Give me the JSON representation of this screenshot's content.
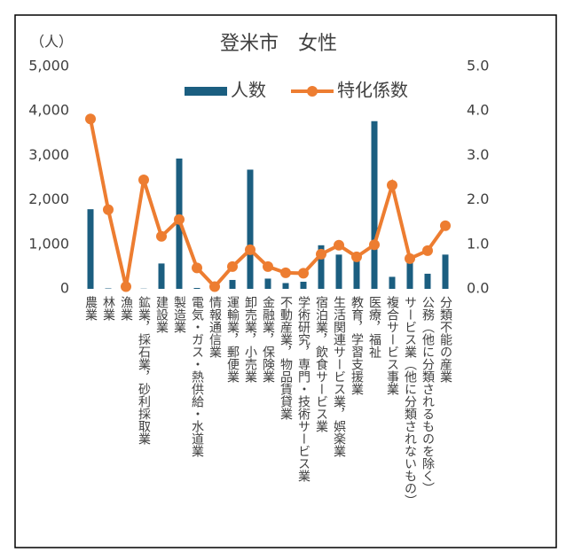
{
  "chart_data": {
    "type": "bar_line",
    "title": "登米市　女性",
    "y_label": "（人）",
    "categories": [
      "農業",
      "林業",
      "漁業",
      "鉱業，採石業，砂利採取業",
      "建設業",
      "製造業",
      "電気・ガス・熱供給・水道業",
      "情報通信業",
      "運輸業，郵便業",
      "卸売業，小売業",
      "金融業，保険業",
      "不動産業，物品賃貸業",
      "学術研究，専門・技術サービス業",
      "宿泊業，飲食サービス業",
      "生活関連サービス業，娯楽業",
      "教育，学習支援業",
      "医療，福祉",
      "複合サービス事業",
      "サービス業（他に分類されないもの）",
      "公務（他に分類されるものを除く）",
      "分類不能の産業"
    ],
    "series": [
      {
        "name": "人数",
        "type": "bar",
        "color": "#1b5e80",
        "values": [
          1790,
          10,
          0,
          5,
          570,
          2930,
          20,
          30,
          200,
          2680,
          230,
          130,
          160,
          980,
          770,
          650,
          3770,
          270,
          600,
          340,
          770
        ]
      },
      {
        "name": "特化係数",
        "type": "line",
        "axis": "y2",
        "color": "#ed7d31",
        "values": [
          3.82,
          1.78,
          0.05,
          2.45,
          1.18,
          1.56,
          0.47,
          0.05,
          0.5,
          0.88,
          0.5,
          0.36,
          0.35,
          0.78,
          0.98,
          0.72,
          0.99,
          2.33,
          0.68,
          0.86,
          1.42
        ]
      }
    ],
    "ylim": [
      0,
      5000
    ],
    "yticks": [
      0,
      {
        "value": 1000,
        "label": "1,000"
      },
      {
        "value": 2000,
        "label": "2,000"
      },
      {
        "value": 3000,
        "label": "3,000"
      },
      {
        "value": 4000,
        "label": "4,000"
      },
      {
        "value": 5000,
        "label": "5,000"
      }
    ],
    "y2lim": [
      0,
      5
    ],
    "y2ticks": [
      {
        "value": 0,
        "label": "0.0"
      },
      {
        "value": 1,
        "label": "1.0"
      },
      {
        "value": 2,
        "label": "2.0"
      },
      {
        "value": 3,
        "label": "3.0"
      },
      {
        "value": 4,
        "label": "4.0"
      },
      {
        "value": 5,
        "label": "5.0"
      }
    ],
    "legend": "top"
  }
}
